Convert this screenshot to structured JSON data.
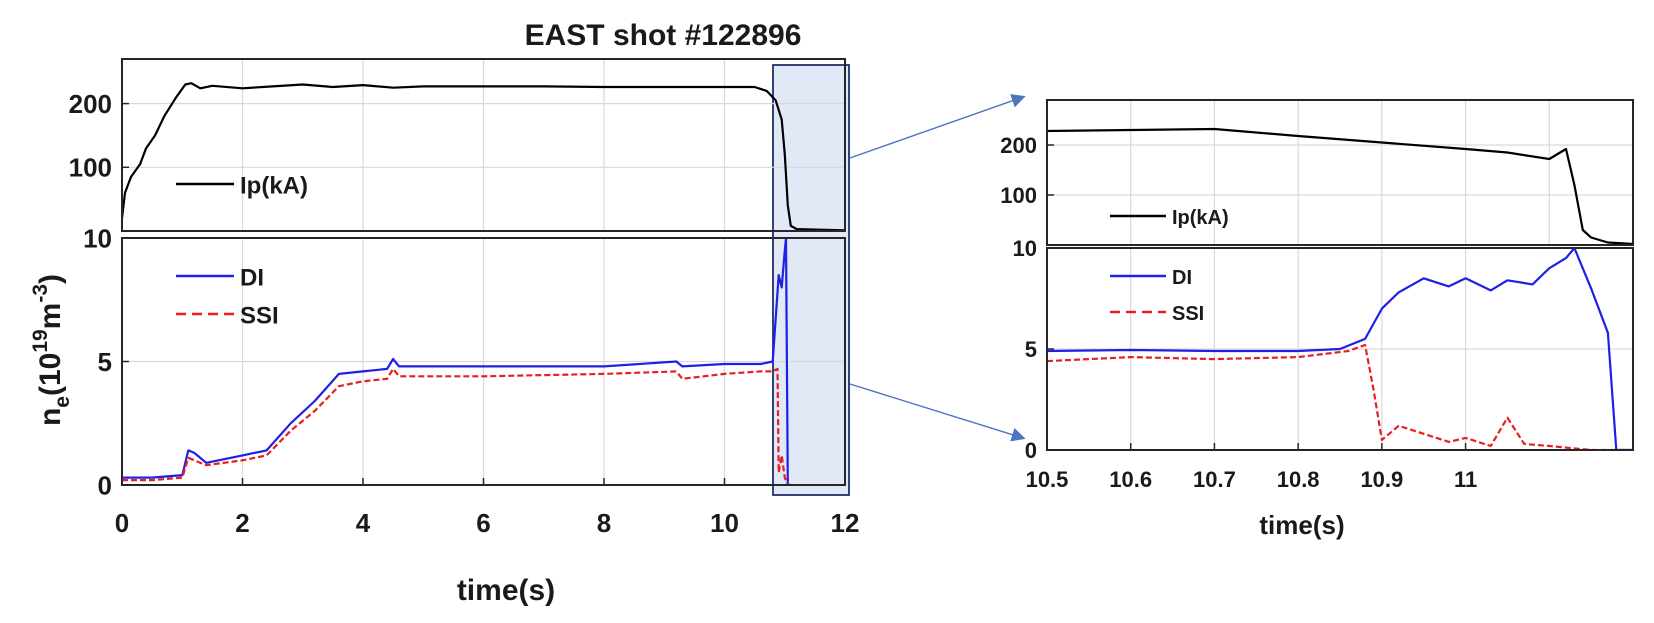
{
  "chart_data": [
    {
      "type": "line",
      "title": "EAST shot #122896",
      "panel": "overview-current",
      "ylabel": "",
      "xlim": [
        0,
        12
      ],
      "ylim": [
        0,
        270
      ],
      "yticks": [
        100,
        200
      ],
      "grid": true,
      "legend": "middle-left",
      "series": [
        {
          "name": "Ip(kA)",
          "color": "#000000",
          "style": "solid",
          "x": [
            0,
            0.05,
            0.15,
            0.3,
            0.4,
            0.55,
            0.7,
            0.9,
            1.05,
            1.15,
            1.3,
            1.5,
            2,
            2.5,
            3,
            3.5,
            4,
            4.5,
            5,
            6,
            7,
            8,
            9,
            10,
            10.5,
            10.7,
            10.85,
            10.95,
            11.0,
            11.05,
            11.1,
            11.2,
            12
          ],
          "y": [
            20,
            60,
            85,
            105,
            130,
            150,
            180,
            210,
            230,
            232,
            224,
            228,
            224,
            227,
            230,
            226,
            229,
            225,
            227,
            227,
            227,
            226,
            226,
            226,
            226,
            220,
            205,
            175,
            120,
            40,
            8,
            3,
            1
          ]
        }
      ]
    },
    {
      "type": "line",
      "panel": "overview-density",
      "xlabel": "time(s)",
      "ylabel": "n_e(10^19 m^-3)",
      "ylabel_main": "n",
      "ylabel_sub": "e",
      "ylabel_paren": "(10",
      "ylabel_exp1": "19",
      "ylabel_m": "m",
      "ylabel_exp2": "-3",
      "ylabel_close": ")",
      "xlim": [
        0,
        12
      ],
      "ylim": [
        0,
        10
      ],
      "xticks": [
        0,
        2,
        4,
        6,
        8,
        10,
        12
      ],
      "yticks": [
        0,
        5,
        10
      ],
      "grid": true,
      "legend": "top-left",
      "series": [
        {
          "name": "DI",
          "color": "#1f1fe6",
          "style": "solid",
          "x": [
            0,
            0.5,
            1.0,
            1.1,
            1.2,
            1.4,
            2.0,
            2.4,
            2.8,
            3.2,
            3.6,
            4.0,
            4.4,
            4.5,
            4.6,
            4.8,
            6,
            8,
            9.2,
            9.3,
            10,
            10.6,
            10.8,
            10.9,
            10.95,
            11.0,
            11.02,
            11.05,
            11.1
          ],
          "y": [
            0.3,
            0.3,
            0.4,
            1.4,
            1.3,
            0.9,
            1.2,
            1.4,
            2.5,
            3.4,
            4.5,
            4.6,
            4.7,
            5.1,
            4.8,
            4.8,
            4.8,
            4.8,
            5.0,
            4.8,
            4.9,
            4.9,
            5.0,
            8.5,
            8.0,
            9.5,
            10.0,
            0.0,
            0.0
          ]
        },
        {
          "name": "SSI",
          "color": "#e62020",
          "style": "dashed",
          "x": [
            0,
            0.5,
            1.0,
            1.1,
            1.2,
            1.4,
            2.0,
            2.4,
            2.8,
            3.2,
            3.6,
            4.0,
            4.4,
            4.5,
            4.6,
            4.8,
            6,
            8,
            9.2,
            9.3,
            10,
            10.6,
            10.8,
            10.88,
            10.9,
            10.95,
            11.0,
            11.05
          ],
          "y": [
            0.2,
            0.2,
            0.3,
            1.1,
            1.0,
            0.8,
            1.0,
            1.2,
            2.2,
            3.0,
            4.0,
            4.2,
            4.3,
            4.7,
            4.4,
            4.4,
            4.4,
            4.5,
            4.6,
            4.3,
            4.5,
            4.6,
            4.6,
            4.7,
            0.5,
            1.2,
            0.3,
            0.0
          ]
        }
      ]
    },
    {
      "type": "line",
      "panel": "zoom-current",
      "xlim": [
        10.5,
        11.2
      ],
      "ylim": [
        0,
        290
      ],
      "yticks": [
        100,
        200
      ],
      "grid": true,
      "legend": "bottom-left",
      "series": [
        {
          "name": "Ip(kA)",
          "color": "#000000",
          "style": "solid",
          "x": [
            10.5,
            10.6,
            10.7,
            10.8,
            10.9,
            11.0,
            11.05,
            11.1,
            11.12,
            11.13,
            11.14,
            11.15,
            11.17,
            11.2
          ],
          "y": [
            228,
            230,
            232,
            218,
            205,
            192,
            185,
            172,
            192,
            120,
            30,
            15,
            5,
            2
          ]
        }
      ]
    },
    {
      "type": "line",
      "panel": "zoom-density",
      "xlabel": "time(s)",
      "xlim": [
        10.5,
        11.2
      ],
      "ylim": [
        0,
        10
      ],
      "xticks": [
        10.5,
        10.6,
        10.7,
        10.8,
        10.9,
        11
      ],
      "yticks": [
        0,
        5,
        10
      ],
      "grid": true,
      "legend": "top-left",
      "series": [
        {
          "name": "DI",
          "color": "#1f1fe6",
          "style": "solid",
          "x": [
            10.5,
            10.6,
            10.7,
            10.8,
            10.85,
            10.88,
            10.9,
            10.92,
            10.95,
            10.98,
            11.0,
            11.03,
            11.05,
            11.08,
            11.1,
            11.12,
            11.13,
            11.15,
            11.17,
            11.18,
            11.19,
            11.2
          ],
          "y": [
            4.9,
            4.95,
            4.9,
            4.9,
            5.0,
            5.5,
            7.0,
            7.8,
            8.5,
            8.1,
            8.5,
            7.9,
            8.4,
            8.2,
            9.0,
            9.5,
            10.0,
            8.0,
            5.8,
            0.0,
            0.0,
            0.0
          ]
        },
        {
          "name": "SSI",
          "color": "#e62020",
          "style": "dashed",
          "x": [
            10.5,
            10.6,
            10.7,
            10.8,
            10.86,
            10.88,
            10.89,
            10.9,
            10.92,
            10.95,
            10.98,
            11.0,
            11.03,
            11.05,
            11.07,
            11.1,
            11.15,
            11.2
          ],
          "y": [
            4.4,
            4.6,
            4.5,
            4.6,
            4.9,
            5.2,
            3.0,
            0.5,
            1.2,
            0.8,
            0.4,
            0.6,
            0.2,
            1.6,
            0.3,
            0.2,
            0.0,
            0.0
          ]
        }
      ]
    }
  ]
}
